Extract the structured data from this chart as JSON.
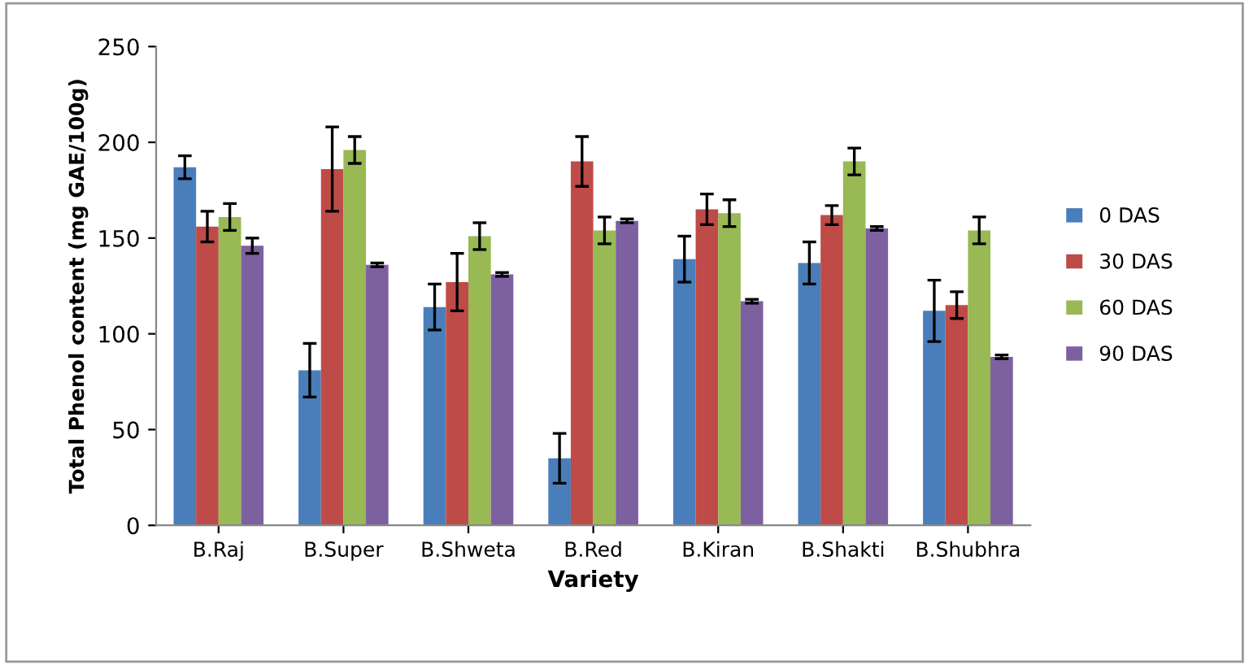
{
  "chart_data": {
    "type": "bar",
    "xlabel": "Variety",
    "ylabel": "Total Phenol content (mg GAE/100g)",
    "categories": [
      "B.Raj",
      "B.Super",
      "B.Shweta",
      "B.Red",
      "B.Kiran",
      "B.Shakti",
      "B.Shubhra"
    ],
    "series": [
      {
        "name": "0 DAS",
        "color": "#4a7ebb",
        "values": [
          187,
          81,
          114,
          35,
          139,
          137,
          112
        ],
        "errors": [
          6,
          14,
          12,
          13,
          12,
          11,
          16
        ]
      },
      {
        "name": "30 DAS",
        "color": "#be4b48",
        "values": [
          156,
          186,
          127,
          190,
          165,
          162,
          115
        ],
        "errors": [
          8,
          22,
          15,
          13,
          8,
          5,
          7
        ]
      },
      {
        "name": "60 DAS",
        "color": "#98b954",
        "values": [
          161,
          196,
          151,
          154,
          163,
          190,
          154
        ],
        "errors": [
          7,
          7,
          7,
          7,
          7,
          7,
          7
        ]
      },
      {
        "name": "90 DAS",
        "color": "#7d60a0",
        "values": [
          146,
          136,
          131,
          159,
          117,
          155,
          88
        ],
        "errors": [
          4,
          1,
          1,
          1,
          1,
          1,
          1
        ]
      }
    ],
    "ylim": [
      0,
      250
    ],
    "yticks": [
      0,
      50,
      100,
      150,
      200,
      250
    ],
    "grid": false,
    "legend": "right"
  }
}
